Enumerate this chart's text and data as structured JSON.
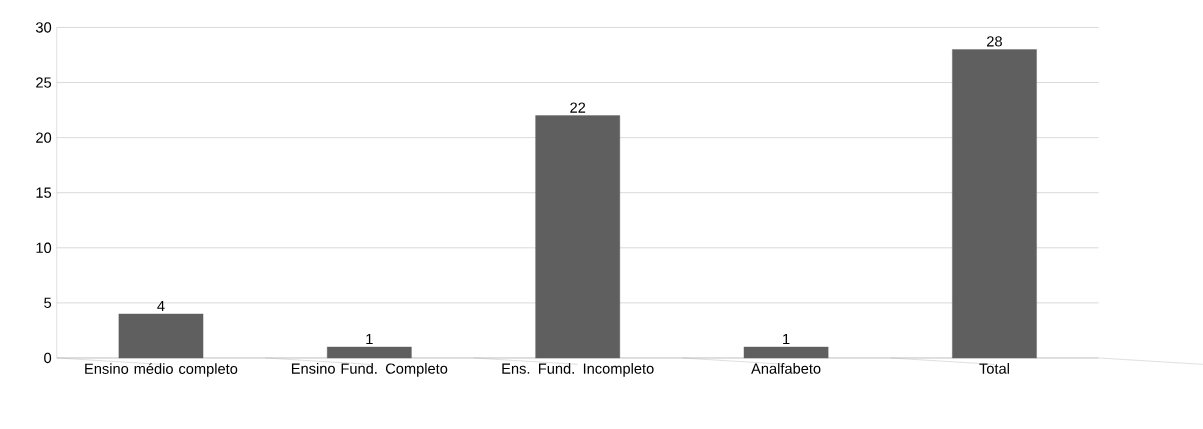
{
  "chart_data": {
    "type": "bar",
    "categories": [
      "Ensino médio completo",
      "Ensino Fund. Completo",
      "Ens. Fund. Incompleto",
      "Analfabeto",
      "Total"
    ],
    "values": [
      4,
      1,
      22,
      1,
      28
    ],
    "color": "#5f5f5f",
    "ylim": [
      0,
      30
    ],
    "yticks": [
      0,
      5,
      10,
      15,
      20,
      25,
      30
    ],
    "grid": "y",
    "data_labels": true
  }
}
